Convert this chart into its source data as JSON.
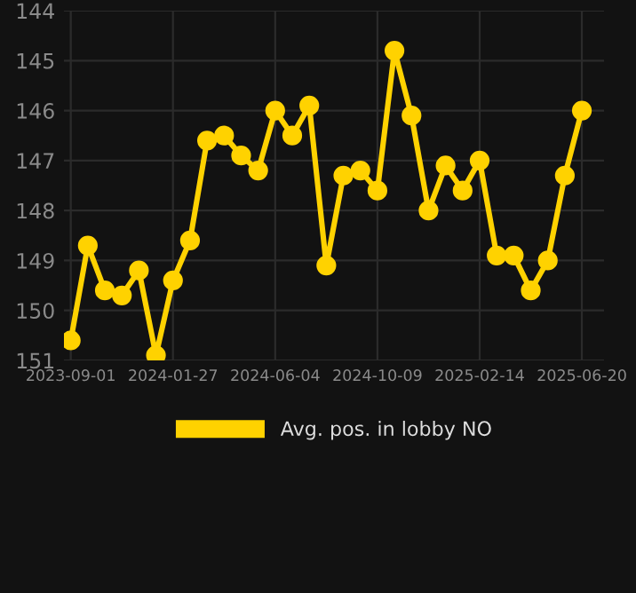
{
  "chart_data": {
    "type": "line",
    "categories": [
      "2023-09-01",
      null,
      null,
      null,
      null,
      null,
      "2024-01-27",
      null,
      null,
      null,
      null,
      null,
      "2024-06-04",
      null,
      null,
      null,
      null,
      null,
      "2024-10-09",
      null,
      null,
      null,
      null,
      null,
      "2025-02-14",
      null,
      null,
      null,
      null,
      null,
      "2025-06-20"
    ],
    "series": [
      {
        "name": "Avg. pos. in lobby NO",
        "color": "#ffd200",
        "values": [
          150.6,
          148.7,
          149.6,
          149.7,
          149.2,
          150.9,
          149.4,
          148.6,
          146.6,
          146.5,
          146.9,
          147.2,
          146.0,
          146.5,
          145.9,
          149.1,
          147.3,
          147.2,
          147.6,
          144.8,
          146.1,
          148.0,
          147.1,
          147.6,
          147.0,
          148.9,
          148.9,
          149.6,
          149.0,
          147.3,
          146.0
        ]
      }
    ],
    "ylim": [
      151,
      144
    ],
    "yticks": [
      144,
      145,
      146,
      147,
      148,
      149,
      150,
      151
    ],
    "grid": true,
    "legend": "bottom",
    "marker": "circle",
    "line_style": "solid"
  }
}
